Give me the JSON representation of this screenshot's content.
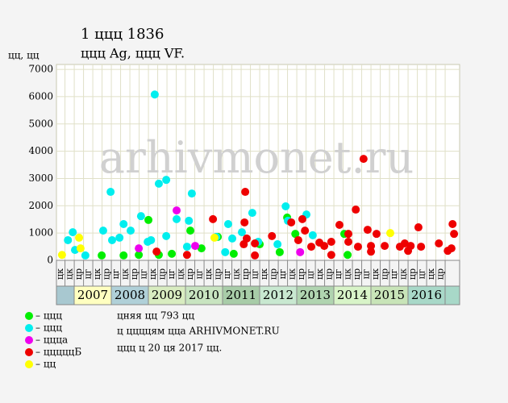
{
  "chart_data": {
    "type": "scatter",
    "title": "1 ццц 1836",
    "subtitle": "ццц Ag, ццц VF.",
    "y_label": "цц, цц",
    "watermark": "arhivmonet.ru",
    "xlim": [
      2006.52,
      2017.39
    ],
    "ylim": [
      0,
      7180
    ],
    "yticks": [
      0,
      1000,
      2000,
      3000,
      4000,
      5000,
      6000,
      7000
    ],
    "xticks": [
      {
        "value": 2006.75,
        "label": "цк"
      },
      {
        "value": 2007,
        "label": "цк"
      },
      {
        "value": 2007.25,
        "label": "цр"
      },
      {
        "value": 2007.5,
        "label": "цг"
      },
      {
        "value": 2007.75,
        "label": "цк"
      },
      {
        "value": 2008,
        "label": "цр"
      },
      {
        "value": 2008.25,
        "label": "цг"
      },
      {
        "value": 2008.5,
        "label": "цк"
      },
      {
        "value": 2008.75,
        "label": "цр"
      },
      {
        "value": 2009,
        "label": "цг"
      },
      {
        "value": 2009.25,
        "label": "цк"
      },
      {
        "value": 2009.5,
        "label": "цр"
      },
      {
        "value": 2009.75,
        "label": "цг"
      },
      {
        "value": 2010,
        "label": "цк"
      },
      {
        "value": 2010.25,
        "label": "цр"
      },
      {
        "value": 2010.5,
        "label": "цг"
      },
      {
        "value": 2010.75,
        "label": "цк"
      },
      {
        "value": 2011,
        "label": "цр"
      },
      {
        "value": 2011.25,
        "label": "цг"
      },
      {
        "value": 2011.5,
        "label": "цк"
      },
      {
        "value": 2011.75,
        "label": "цр"
      },
      {
        "value": 2012,
        "label": "цг"
      },
      {
        "value": 2012.25,
        "label": "цк"
      },
      {
        "value": 2012.5,
        "label": "цр"
      },
      {
        "value": 2012.75,
        "label": "цг"
      },
      {
        "value": 2013,
        "label": "цк"
      },
      {
        "value": 2013.25,
        "label": "цр"
      },
      {
        "value": 2013.5,
        "label": "цг"
      },
      {
        "value": 2013.75,
        "label": "цк"
      },
      {
        "value": 2014,
        "label": "цр"
      },
      {
        "value": 2014.25,
        "label": "цг"
      },
      {
        "value": 2014.5,
        "label": "цк"
      },
      {
        "value": 2014.75,
        "label": "цр"
      },
      {
        "value": 2015,
        "label": "цг"
      },
      {
        "value": 2015.25,
        "label": "цк"
      },
      {
        "value": 2015.5,
        "label": "цр"
      },
      {
        "value": 2015.75,
        "label": "цг"
      },
      {
        "value": 2016,
        "label": "цк"
      },
      {
        "value": 2016.25,
        "label": "цр"
      },
      {
        "value": 2016.5,
        "label": "цг"
      },
      {
        "value": 2016.75,
        "label": "цк"
      },
      {
        "value": 2017,
        "label": "цр"
      }
    ],
    "grid": true,
    "years": [
      "2007",
      "2008",
      "2009",
      "2010",
      "2011",
      "2012",
      "2013",
      "2014",
      "2015",
      "2016"
    ],
    "year_colors": [
      "#ffffc0",
      "#b0d0d8",
      "#d8ecc0",
      "#c8e4c0",
      "#a8cca8",
      "#c8e8d0",
      "#b0d4b0",
      "#d8f4c8",
      "#c8e4b8",
      "#a8d8c8"
    ],
    "series": [
      {
        "name": "– ццц",
        "color": "#00ee00",
        "x": [
          2007.74,
          2008.33,
          2008.74,
          2009.0,
          2009.28,
          2009.63,
          2010.13,
          2010.43,
          2010.87,
          2011.3,
          2012.0,
          2012.54,
          2012.74,
          2012.96,
          2014.28,
          2014.37
        ],
        "values": [
          180,
          180,
          200,
          1480,
          200,
          240,
          1090,
          440,
          860,
          240,
          590,
          300,
          1570,
          970,
          970,
          200
        ]
      },
      {
        "name": "– ццц",
        "color": "#00eeee",
        "x": [
          2006.83,
          2006.96,
          2007.02,
          2007.3,
          2007.78,
          2007.98,
          2008.02,
          2008.22,
          2008.33,
          2008.52,
          2008.8,
          2008.98,
          2009.07,
          2009.17,
          2009.28,
          2009.48,
          2009.48,
          2009.76,
          2010.04,
          2010.09,
          2010.17,
          2010.83,
          2011.07,
          2011.15,
          2011.26,
          2011.52,
          2011.8,
          2011.96,
          2012.48,
          2012.7,
          2012.76,
          2013.26,
          2013.43
        ],
        "values": [
          740,
          1030,
          380,
          180,
          1090,
          2510,
          740,
          830,
          1330,
          1090,
          1620,
          680,
          740,
          6080,
          2810,
          2950,
          890,
          1510,
          500,
          1450,
          2450,
          860,
          300,
          1330,
          800,
          1030,
          1740,
          680,
          590,
          1980,
          1450,
          1680,
          920
        ]
      },
      {
        "name": "– ццца",
        "color": "#ee00ee",
        "x": [
          2008.74,
          2009.76,
          2010.26,
          2013.09
        ],
        "values": [
          440,
          1830,
          530,
          300
        ]
      },
      {
        "name": "– цццццБ",
        "color": "#ee0000",
        "x": [
          2009.22,
          2010.04,
          2010.74,
          2011.57,
          2011.61,
          2011.59,
          2011.65,
          2011.87,
          2011.87,
          2012.33,
          2012.85,
          2013.04,
          2013.15,
          2013.22,
          2013.39,
          2013.61,
          2013.74,
          2013.93,
          2013.93,
          2014.15,
          2014.39,
          2014.39,
          2014.59,
          2014.65,
          2014.8,
          2014.91,
          2015.0,
          2015.0,
          2015.15,
          2015.37,
          2015.78,
          2015.91,
          2016.0,
          2016.07,
          2016.28,
          2016.35,
          2016.83,
          2017.07,
          2017.17,
          2017.2,
          2017.24
        ],
        "values": [
          320,
          200,
          1510,
          590,
          2510,
          1390,
          800,
          620,
          180,
          890,
          1390,
          740,
          1510,
          1090,
          500,
          650,
          530,
          680,
          200,
          1300,
          970,
          680,
          1860,
          500,
          3720,
          1120,
          320,
          530,
          970,
          530,
          500,
          620,
          350,
          530,
          1210,
          500,
          620,
          350,
          440,
          1330,
          970
        ]
      },
      {
        "name": "– цц",
        "color": "#ffff00",
        "x": [
          2006.67,
          2007.13,
          2007.17,
          2010.78,
          2015.52
        ],
        "values": [
          200,
          830,
          440,
          830,
          1000
        ]
      }
    ],
    "notes": [
      "цняя цц 793 цц",
      "ц ццццям цца ARHIVMONET.RU",
      "ццц ц 20 ця 2017 цц."
    ]
  }
}
